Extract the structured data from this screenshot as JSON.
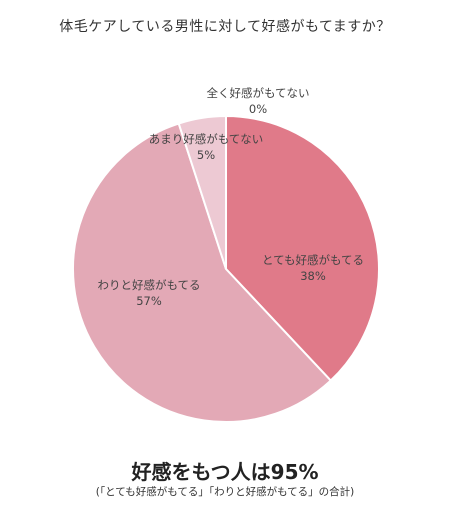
{
  "chart_data": {
    "type": "pie",
    "title": "体毛ケアしている男性に対して好感がもてますか？",
    "categories": [
      "とても好感がもてる",
      "わりと好感がもてる",
      "あまり好感がもてない",
      "全く好感がもてない"
    ],
    "values": [
      38,
      57,
      5,
      0
    ],
    "value_labels": [
      "38%",
      "57%",
      "5%",
      "0%"
    ],
    "colors": [
      "#e07a89",
      "#e3a9b6",
      "#edc9d3",
      "#f4e4e9"
    ],
    "start_angle": "12 o'clock",
    "direction": "clockwise"
  },
  "summary": {
    "headline": "好感をもつ人は95%",
    "note": "(「とても好感がもてる」「わりと好感がもてる」の合計)"
  }
}
